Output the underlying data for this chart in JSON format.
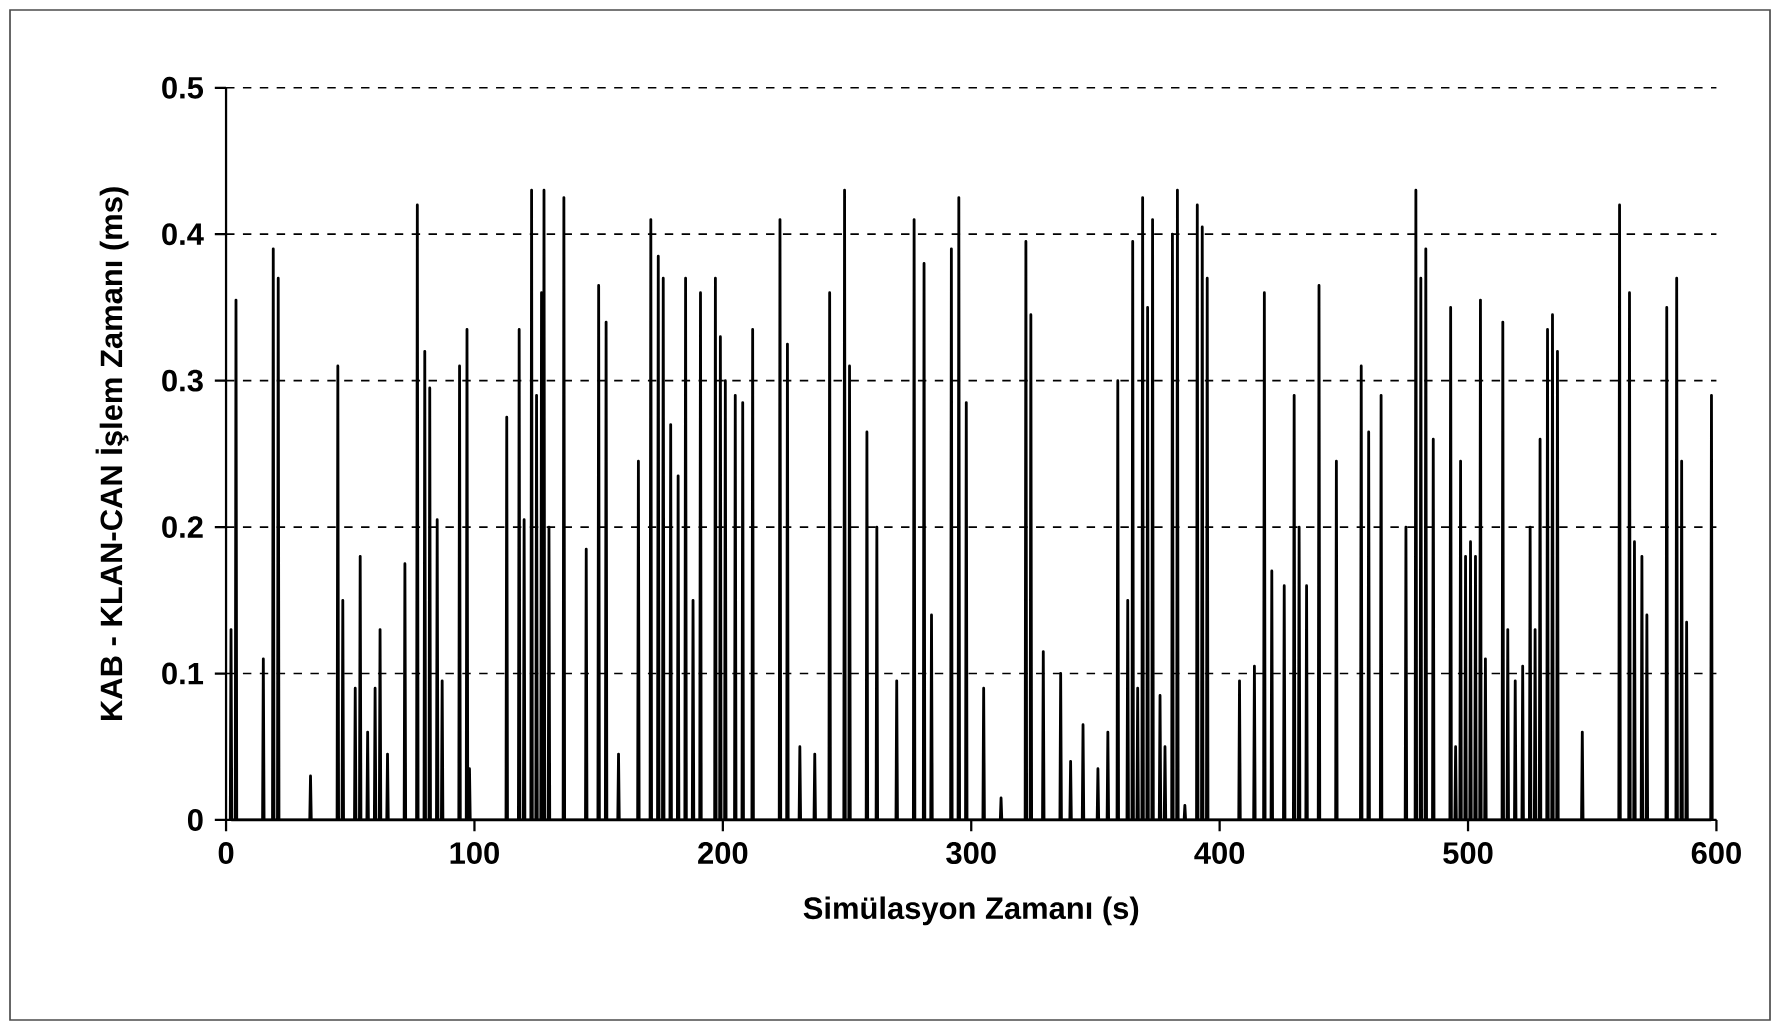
{
  "chart_data": {
    "type": "line",
    "xlabel": "Simülasyon Zamanı (s)",
    "ylabel": "KAB - KLAN-CAN İşlem Zamanı (ms)",
    "xlim": [
      0,
      600
    ],
    "xticks": [
      0,
      100,
      200,
      300,
      400,
      500,
      600
    ],
    "ylim": [
      0,
      0.5
    ],
    "yticks": [
      0,
      0.1,
      0.2,
      0.3,
      0.4,
      0.5
    ],
    "grid": "y",
    "marker": "none",
    "line_style": "solid",
    "series": [
      {
        "color": "#000000",
        "x": [
          1.7,
          2,
          2.3,
          3.7,
          4,
          4.3,
          14.7,
          15,
          15.3,
          18.7,
          19,
          19.3,
          20.7,
          21,
          21.3,
          33.7,
          34,
          34.3,
          44.7,
          45,
          45.3,
          46.7,
          47,
          47.3,
          51.7,
          52,
          52.3,
          53.7,
          54,
          54.3,
          56.7,
          57,
          57.3,
          59.7,
          60,
          60.3,
          61.7,
          62,
          62.3,
          64.7,
          65,
          65.3,
          71.7,
          72,
          72.3,
          76.7,
          77,
          77.3,
          79.7,
          80,
          80.3,
          81.7,
          82,
          82.3,
          84.7,
          85,
          85.3,
          86.7,
          87,
          87.3,
          93.7,
          94,
          94.3,
          96.7,
          97,
          97.3,
          97.7,
          98,
          98.3,
          112.7,
          113,
          113.3,
          117.7,
          118,
          118.3,
          119.7,
          120,
          120.3,
          122.7,
          123,
          123.3,
          124.7,
          125,
          125.3,
          126.7,
          127,
          127.3,
          127.7,
          128,
          128.3,
          129.7,
          130,
          130.3,
          135.7,
          136,
          136.3,
          144.7,
          145,
          145.3,
          149.7,
          150,
          150.3,
          152.7,
          153,
          153.3,
          157.7,
          158,
          158.3,
          165.7,
          166,
          166.3,
          170.7,
          171,
          171.3,
          173.7,
          174,
          174.3,
          175.7,
          176,
          176.3,
          178.7,
          179,
          179.3,
          181.7,
          182,
          182.3,
          184.7,
          185,
          185.3,
          187.7,
          188,
          188.3,
          190.7,
          191,
          191.3,
          196.7,
          197,
          197.3,
          198.7,
          199,
          199.3,
          200.7,
          201,
          201.3,
          204.7,
          205,
          205.3,
          207.7,
          208,
          208.3,
          211.7,
          212,
          212.3,
          222.7,
          223,
          223.3,
          225.7,
          226,
          226.3,
          230.7,
          231,
          231.3,
          236.7,
          237,
          237.3,
          242.7,
          243,
          243.3,
          248.7,
          249,
          249.3,
          250.7,
          251,
          251.3,
          257.7,
          258,
          258.3,
          261.7,
          262,
          262.3,
          269.7,
          270,
          270.3,
          276.7,
          277,
          277.3,
          280.7,
          281,
          281.3,
          283.7,
          284,
          284.3,
          291.7,
          292,
          292.3,
          294.7,
          295,
          295.3,
          297.7,
          298,
          298.3,
          304.7,
          305,
          305.3,
          311.7,
          312,
          312.3,
          321.7,
          322,
          322.3,
          323.7,
          324,
          324.3,
          328.7,
          329,
          329.3,
          335.7,
          336,
          336.3,
          339.7,
          340,
          340.3,
          344.7,
          345,
          345.3,
          350.7,
          351,
          351.3,
          354.7,
          355,
          355.3,
          358.7,
          359,
          359.3,
          362.7,
          363,
          363.3,
          364.7,
          365,
          365.3,
          366.7,
          367,
          367.3,
          368.7,
          369,
          369.3,
          370.7,
          371,
          371.3,
          372.7,
          373,
          373.3,
          375.7,
          376,
          376.3,
          377.7,
          378,
          378.3,
          380.7,
          381,
          381.3,
          382.7,
          383,
          383.3,
          385.7,
          386,
          386.3,
          390.7,
          391,
          391.3,
          392.7,
          393,
          393.3,
          394.7,
          395,
          395.3,
          407.7,
          408,
          408.3,
          413.7,
          414,
          414.3,
          417.7,
          418,
          418.3,
          420.7,
          421,
          421.3,
          425.7,
          426,
          426.3,
          429.7,
          430,
          430.3,
          431.7,
          432,
          432.3,
          434.7,
          435,
          435.3,
          439.7,
          440,
          440.3,
          446.7,
          447,
          447.3,
          456.7,
          457,
          457.3,
          459.7,
          460,
          460.3,
          464.7,
          465,
          465.3,
          474.7,
          475,
          475.3,
          478.7,
          479,
          479.3,
          480.7,
          481,
          481.3,
          482.7,
          483,
          483.3,
          485.7,
          486,
          486.3,
          492.7,
          493,
          493.3,
          494.7,
          495,
          495.3,
          496.7,
          497,
          497.3,
          498.7,
          499,
          499.3,
          500.7,
          501,
          501.3,
          502.7,
          503,
          503.3,
          504.7,
          505,
          505.3,
          506.7,
          507,
          507.3,
          513.7,
          514,
          514.3,
          515.7,
          516,
          516.3,
          518.7,
          519,
          519.3,
          521.7,
          522,
          522.3,
          524.7,
          525,
          525.3,
          526.7,
          527,
          527.3,
          528.7,
          529,
          529.3,
          531.7,
          532,
          532.3,
          533.7,
          534,
          534.3,
          535.7,
          536,
          536.3,
          545.7,
          546,
          546.3,
          560.7,
          561,
          561.3,
          564.7,
          565,
          565.3,
          566.7,
          567,
          567.3,
          569.7,
          570,
          570.3,
          571.7,
          572,
          572.3,
          579.7,
          580,
          580.3,
          583.7,
          584,
          584.3,
          585.7,
          586,
          586.3,
          587.7,
          588,
          588.3,
          597.7,
          598,
          598.3
        ],
        "values": [
          0,
          0.13,
          0,
          0,
          0.355,
          0,
          0,
          0.11,
          0,
          0,
          0.39,
          0,
          0,
          0.37,
          0,
          0,
          0.03,
          0,
          0,
          0.31,
          0,
          0,
          0.15,
          0,
          0,
          0.09,
          0,
          0,
          0.18,
          0,
          0,
          0.06,
          0,
          0,
          0.09,
          0,
          0,
          0.13,
          0,
          0,
          0.045,
          0,
          0,
          0.175,
          0,
          0,
          0.42,
          0,
          0,
          0.32,
          0,
          0,
          0.295,
          0,
          0,
          0.205,
          0,
          0,
          0.095,
          0,
          0,
          0.31,
          0,
          0,
          0.335,
          0,
          0,
          0.035,
          0,
          0,
          0.275,
          0,
          0,
          0.335,
          0,
          0,
          0.205,
          0,
          0,
          0.43,
          0,
          0,
          0.29,
          0,
          0,
          0.36,
          0,
          0,
          0.43,
          0,
          0,
          0.2,
          0,
          0,
          0.425,
          0,
          0,
          0.185,
          0,
          0,
          0.365,
          0,
          0,
          0.34,
          0,
          0,
          0.045,
          0,
          0,
          0.245,
          0,
          0,
          0.41,
          0,
          0,
          0.385,
          0,
          0,
          0.37,
          0,
          0,
          0.27,
          0,
          0,
          0.235,
          0,
          0,
          0.37,
          0,
          0,
          0.15,
          0,
          0,
          0.36,
          0,
          0,
          0.37,
          0,
          0,
          0.33,
          0,
          0,
          0.3,
          0,
          0,
          0.29,
          0,
          0,
          0.285,
          0,
          0,
          0.335,
          0,
          0,
          0.41,
          0,
          0,
          0.325,
          0,
          0,
          0.05,
          0,
          0,
          0.045,
          0,
          0,
          0.36,
          0,
          0,
          0.43,
          0,
          0,
          0.31,
          0,
          0,
          0.265,
          0,
          0,
          0.2,
          0,
          0,
          0.095,
          0,
          0,
          0.41,
          0,
          0,
          0.38,
          0,
          0,
          0.14,
          0,
          0,
          0.39,
          0,
          0,
          0.425,
          0,
          0,
          0.285,
          0,
          0,
          0.09,
          0,
          0,
          0.015,
          0,
          0,
          0.395,
          0,
          0,
          0.345,
          0,
          0,
          0.115,
          0,
          0,
          0.1,
          0,
          0,
          0.04,
          0,
          0,
          0.065,
          0,
          0,
          0.035,
          0,
          0,
          0.06,
          0,
          0,
          0.3,
          0,
          0,
          0.15,
          0,
          0,
          0.395,
          0,
          0,
          0.09,
          0,
          0,
          0.425,
          0,
          0,
          0.35,
          0,
          0,
          0.41,
          0,
          0,
          0.085,
          0,
          0,
          0.05,
          0,
          0,
          0.4,
          0,
          0,
          0.43,
          0,
          0,
          0.01,
          0,
          0,
          0.42,
          0,
          0,
          0.405,
          0,
          0,
          0.37,
          0,
          0,
          0.095,
          0,
          0,
          0.105,
          0,
          0,
          0.36,
          0,
          0,
          0.17,
          0,
          0,
          0.16,
          0,
          0,
          0.29,
          0,
          0,
          0.2,
          0,
          0,
          0.16,
          0,
          0,
          0.365,
          0,
          0,
          0.245,
          0,
          0,
          0.31,
          0,
          0,
          0.265,
          0,
          0,
          0.29,
          0,
          0,
          0.2,
          0,
          0,
          0.43,
          0,
          0,
          0.37,
          0,
          0,
          0.39,
          0,
          0,
          0.26,
          0,
          0,
          0.35,
          0,
          0,
          0.05,
          0,
          0,
          0.245,
          0,
          0,
          0.18,
          0,
          0,
          0.19,
          0,
          0,
          0.18,
          0,
          0,
          0.355,
          0,
          0,
          0.11,
          0,
          0,
          0.34,
          0,
          0,
          0.13,
          0,
          0,
          0.095,
          0,
          0,
          0.105,
          0,
          0,
          0.2,
          0,
          0,
          0.13,
          0,
          0,
          0.26,
          0,
          0,
          0.335,
          0,
          0,
          0.345,
          0,
          0,
          0.32,
          0,
          0,
          0.06,
          0,
          0,
          0.42,
          0,
          0,
          0.36,
          0,
          0,
          0.19,
          0,
          0,
          0.18,
          0,
          0,
          0.14,
          0,
          0,
          0.35,
          0,
          0,
          0.37,
          0,
          0,
          0.245,
          0,
          0,
          0.135,
          0,
          0,
          0.29,
          0
        ]
      }
    ]
  }
}
